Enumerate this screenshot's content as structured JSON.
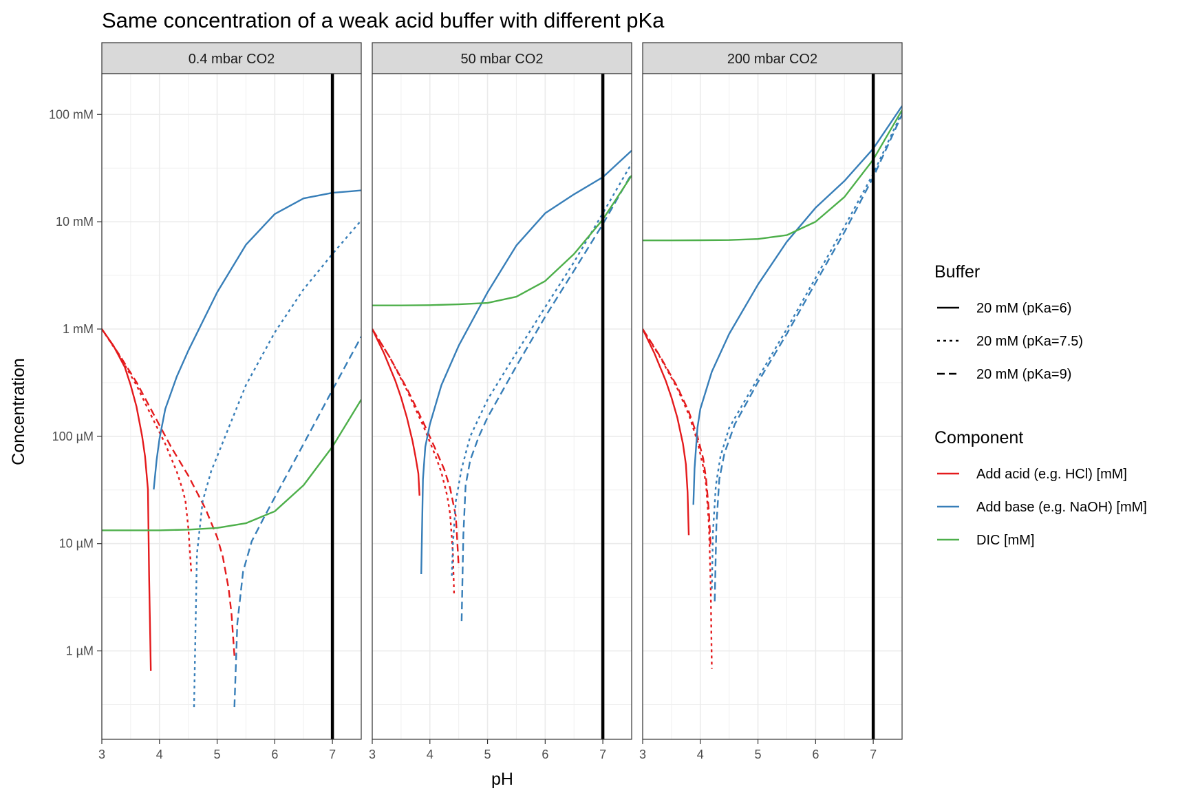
{
  "chart_data": {
    "type": "line",
    "title": "Same concentration of a weak acid buffer with different pKa",
    "xlabel": "pH",
    "ylabel": "Concentration",
    "xlim": [
      3,
      7.5
    ],
    "x_ticks": [
      3,
      4,
      5,
      6,
      7
    ],
    "y_scale": "log",
    "ylim_mM": [
      0.00015,
      240
    ],
    "y_ticks": [
      {
        "value_mM": 100,
        "label": "100 mM"
      },
      {
        "value_mM": 10,
        "label": "10 mM"
      },
      {
        "value_mM": 1,
        "label": "1 mM"
      },
      {
        "value_mM": 0.1,
        "label": "100 µM"
      },
      {
        "value_mM": 0.01,
        "label": "10 µM"
      },
      {
        "value_mM": 0.001,
        "label": "1 µM"
      }
    ],
    "grid": true,
    "reference_line": {
      "x": 7,
      "color": "#000000"
    },
    "legend_position": "right",
    "legend": {
      "buffer": {
        "title": "Buffer",
        "entries": [
          {
            "label": "20 mM (pKa=6)",
            "linetype": "solid"
          },
          {
            "label": "20 mM (pKa=7.5)",
            "linetype": "dotted"
          },
          {
            "label": "20 mM (pKa=9)",
            "linetype": "dashed"
          }
        ]
      },
      "component": {
        "title": "Component",
        "entries": [
          {
            "label": "Add acid (e.g. HCl) [mM]",
            "color": "#e41a1c"
          },
          {
            "label": "Add base (e.g. NaOH) [mM]",
            "color": "#377eb8"
          },
          {
            "label": "DIC [mM]",
            "color": "#4daf4a"
          }
        ]
      }
    },
    "panels": [
      {
        "label": "0.4 mbar CO2",
        "series": [
          {
            "component": "acid",
            "buffer": "pKa=6",
            "x": [
              3.0,
              3.2,
              3.4,
              3.5,
              3.6,
              3.7,
              3.75,
              3.8,
              3.82,
              3.85
            ],
            "y": [
              1.0,
              0.7,
              0.44,
              0.3,
              0.19,
              0.1,
              0.065,
              0.032,
              0.005,
              0.00065
            ]
          },
          {
            "component": "acid",
            "buffer": "pKa=7.5",
            "x": [
              3.0,
              3.3,
              3.6,
              3.9,
              4.1,
              4.3,
              4.4,
              4.45,
              4.5,
              4.55
            ],
            "y": [
              1.0,
              0.57,
              0.3,
              0.14,
              0.085,
              0.047,
              0.032,
              0.025,
              0.014,
              0.0055
            ]
          },
          {
            "component": "acid",
            "buffer": "pKa=9",
            "x": [
              3.0,
              3.3,
              3.6,
              3.9,
              4.2,
              4.5,
              4.8,
              5.0,
              5.1,
              5.2,
              5.25,
              5.3
            ],
            "y": [
              1.0,
              0.58,
              0.32,
              0.16,
              0.08,
              0.043,
              0.021,
              0.0115,
              0.0075,
              0.0038,
              0.0022,
              0.0009
            ]
          },
          {
            "component": "base",
            "buffer": "pKa=6",
            "x": [
              3.9,
              3.95,
              4.0,
              4.1,
              4.3,
              4.5,
              5.0,
              5.5,
              6.0,
              6.5,
              7.0,
              7.5
            ],
            "y": [
              0.032,
              0.06,
              0.095,
              0.18,
              0.36,
              0.63,
              2.2,
              6.1,
              11.8,
              16.5,
              18.6,
              19.6
            ]
          },
          {
            "component": "base",
            "buffer": "pKa=7.5",
            "x": [
              4.6,
              4.65,
              4.75,
              4.9,
              5.0,
              5.2,
              5.5,
              6.0,
              6.5,
              7.0,
              7.5
            ],
            "y": [
              0.0003,
              0.008,
              0.025,
              0.048,
              0.065,
              0.12,
              0.3,
              0.93,
              2.35,
              5.0,
              10.3
            ]
          },
          {
            "component": "base",
            "buffer": "pKa=9",
            "x": [
              5.3,
              5.35,
              5.45,
              5.6,
              5.8,
              6.0,
              6.5,
              7.0,
              7.5
            ],
            "y": [
              0.0003,
              0.0018,
              0.0055,
              0.0105,
              0.017,
              0.027,
              0.085,
              0.27,
              0.85
            ]
          },
          {
            "component": "DIC",
            "buffer": "pKa=6",
            "x": [
              3.0,
              3.5,
              4.0,
              4.5,
              5.0,
              5.5,
              6.0,
              6.5,
              7.0,
              7.5
            ],
            "y": [
              0.0133,
              0.0133,
              0.0133,
              0.0135,
              0.014,
              0.0155,
              0.02,
              0.035,
              0.08,
              0.22
            ]
          }
        ]
      },
      {
        "label": "50 mbar CO2",
        "series": [
          {
            "component": "acid",
            "buffer": "pKa=6",
            "x": [
              3.0,
              3.2,
              3.4,
              3.5,
              3.6,
              3.7,
              3.75,
              3.8,
              3.82
            ],
            "y": [
              1.0,
              0.6,
              0.33,
              0.23,
              0.15,
              0.09,
              0.065,
              0.045,
              0.028
            ]
          },
          {
            "component": "acid",
            "buffer": "pKa=7.5",
            "x": [
              3.0,
              3.3,
              3.6,
              3.9,
              4.1,
              4.2,
              4.3,
              4.35,
              4.4,
              4.42
            ],
            "y": [
              1.0,
              0.55,
              0.27,
              0.12,
              0.065,
              0.046,
              0.028,
              0.019,
              0.008,
              0.0032
            ]
          },
          {
            "component": "acid",
            "buffer": "pKa=9",
            "x": [
              3.0,
              3.3,
              3.6,
              3.9,
              4.1,
              4.25,
              4.35,
              4.45,
              4.5
            ],
            "y": [
              1.0,
              0.55,
              0.28,
              0.13,
              0.075,
              0.049,
              0.033,
              0.018,
              0.006
            ]
          },
          {
            "component": "base",
            "buffer": "pKa=6",
            "x": [
              3.85,
              3.88,
              3.92,
              4.0,
              4.2,
              4.5,
              5.0,
              5.5,
              6.0,
              6.5,
              7.0,
              7.5
            ],
            "y": [
              0.0052,
              0.04,
              0.08,
              0.13,
              0.3,
              0.7,
              2.2,
              6.0,
              12.0,
              18.0,
              26.0,
              46.0
            ]
          },
          {
            "component": "base",
            "buffer": "pKa=7.5",
            "x": [
              4.38,
              4.4,
              4.45,
              4.55,
              4.7,
              5.0,
              5.5,
              6.0,
              6.5,
              7.0,
              7.5
            ],
            "y": [
              0.005,
              0.01,
              0.025,
              0.05,
              0.1,
              0.22,
              0.6,
              1.6,
              4.2,
              12.0,
              35.0
            ]
          },
          {
            "component": "base",
            "buffer": "pKa=9",
            "x": [
              4.55,
              4.58,
              4.62,
              4.7,
              4.85,
              5.0,
              5.5,
              6.0,
              6.5,
              7.0,
              7.5
            ],
            "y": [
              0.0019,
              0.012,
              0.035,
              0.06,
              0.1,
              0.15,
              0.45,
              1.3,
              3.5,
              9.5,
              28.0
            ]
          },
          {
            "component": "DIC",
            "buffer": "pKa=6",
            "x": [
              3.0,
              3.5,
              4.0,
              4.5,
              5.0,
              5.5,
              6.0,
              6.5,
              7.0,
              7.5
            ],
            "y": [
              1.66,
              1.66,
              1.67,
              1.7,
              1.75,
              2.0,
              2.8,
              5.0,
              10.5,
              27.0
            ]
          }
        ]
      },
      {
        "label": "200 mbar CO2",
        "series": [
          {
            "component": "acid",
            "buffer": "pKa=6",
            "x": [
              3.0,
              3.2,
              3.4,
              3.5,
              3.6,
              3.7,
              3.75,
              3.78,
              3.8
            ],
            "y": [
              1.0,
              0.6,
              0.33,
              0.23,
              0.15,
              0.085,
              0.055,
              0.03,
              0.012
            ]
          },
          {
            "component": "acid",
            "buffer": "pKa=7.5",
            "x": [
              3.0,
              3.3,
              3.6,
              3.8,
              3.95,
              4.05,
              4.1,
              4.15,
              4.18,
              4.2
            ],
            "y": [
              1.0,
              0.55,
              0.28,
              0.16,
              0.09,
              0.052,
              0.035,
              0.015,
              0.004,
              0.00068
            ]
          },
          {
            "component": "acid",
            "buffer": "pKa=9",
            "x": [
              3.0,
              3.3,
              3.6,
              3.8,
              3.95,
              4.05,
              4.1,
              4.15,
              4.18
            ],
            "y": [
              1.0,
              0.56,
              0.29,
              0.17,
              0.1,
              0.062,
              0.04,
              0.02,
              0.009
            ]
          },
          {
            "component": "base",
            "buffer": "pKa=6",
            "x": [
              3.88,
              3.9,
              3.95,
              4.0,
              4.2,
              4.5,
              5.0,
              5.5,
              6.0,
              6.5,
              7.0,
              7.5
            ],
            "y": [
              0.023,
              0.05,
              0.12,
              0.18,
              0.4,
              0.9,
              2.6,
              6.5,
              13.5,
              24.0,
              48.0,
              120.0
            ]
          },
          {
            "component": "base",
            "buffer": "pKa=7.5",
            "x": [
              4.2,
              4.22,
              4.27,
              4.35,
              4.5,
              5.0,
              5.5,
              6.0,
              6.5,
              7.0,
              7.5
            ],
            "y": [
              0.0038,
              0.013,
              0.035,
              0.065,
              0.12,
              0.35,
              1.0,
              3.0,
              9.0,
              28.0,
              105.0
            ]
          },
          {
            "component": "base",
            "buffer": "pKa=9",
            "x": [
              4.25,
              4.28,
              4.33,
              4.42,
              4.6,
              5.0,
              5.5,
              6.0,
              6.5,
              7.0,
              7.5
            ],
            "y": [
              0.0029,
              0.015,
              0.04,
              0.07,
              0.13,
              0.32,
              0.9,
              2.7,
              8.0,
              26.0,
              100.0
            ]
          },
          {
            "component": "DIC",
            "buffer": "pKa=6",
            "x": [
              3.0,
              3.5,
              4.0,
              4.5,
              5.0,
              5.5,
              6.0,
              6.5,
              7.0,
              7.5
            ],
            "y": [
              6.7,
              6.7,
              6.72,
              6.75,
              6.9,
              7.5,
              10.0,
              17.0,
              38.0,
              110.0
            ]
          }
        ]
      }
    ]
  }
}
